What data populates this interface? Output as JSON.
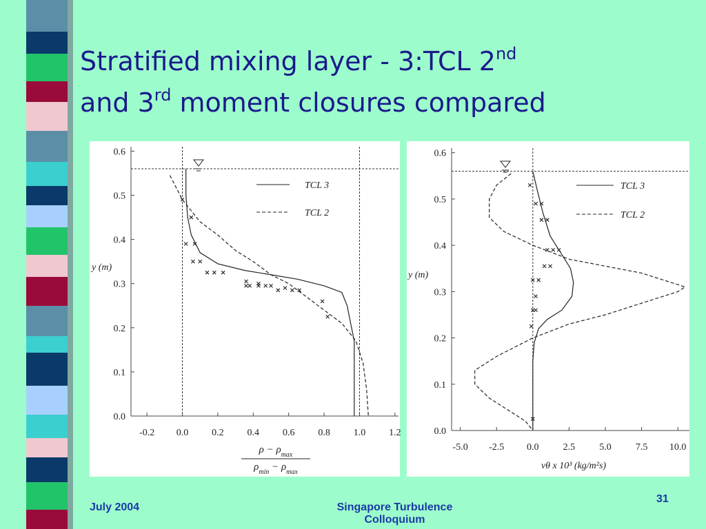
{
  "title": {
    "line1": [
      "Stratified mixing layer - 3:TCL 2",
      "nd"
    ],
    "line2": [
      "and 3",
      "rd",
      " moment closures compared"
    ]
  },
  "footer": {
    "left": "July 2004",
    "center": "Singapore Turbulence Colloquium",
    "page": "31"
  },
  "chart_data": [
    {
      "type": "line",
      "ylabel": "y (m)",
      "xlabel": {
        "numerator": [
          "ρ − ρ",
          "max"
        ],
        "denominator": [
          "ρ",
          "min",
          " − ρ",
          "max"
        ]
      },
      "xlim": [
        -0.29,
        1.22
      ],
      "ylim": [
        0,
        0.61
      ],
      "xticks": [
        {
          "value": -0.2,
          "label": "-0.2"
        },
        {
          "value": 0,
          "label": "0.0"
        },
        {
          "value": 0.2,
          "label": "0.2"
        },
        {
          "value": 0.4,
          "label": "0.4"
        },
        {
          "value": 0.6,
          "label": "0.6"
        },
        {
          "value": 0.8,
          "label": "0.8"
        },
        {
          "value": 1,
          "label": "1.0"
        },
        {
          "value": 1.2,
          "label": "1.2"
        }
      ],
      "yticks": [
        {
          "value": 0,
          "label": "0.0"
        },
        0.1,
        0.2,
        0.3,
        0.4,
        0.5,
        0.6
      ],
      "hlines": [
        0.56
      ],
      "vlines": [
        0,
        1
      ],
      "series": [
        {
          "name": "TCL 3",
          "style": "solid",
          "color": "#222222",
          "x": [
            0.02,
            0.02,
            0.03,
            0.05,
            0.1,
            0.2,
            0.35,
            0.5,
            0.65,
            0.8,
            0.9,
            0.93,
            0.95,
            0.97,
            0.97,
            0.97
          ],
          "values": [
            0.56,
            0.5,
            0.45,
            0.41,
            0.37,
            0.345,
            0.33,
            0.32,
            0.31,
            0.295,
            0.28,
            0.25,
            0.21,
            0.17,
            0.1,
            0
          ]
        },
        {
          "name": "TCL 2",
          "style": "dashed",
          "color": "#222222",
          "x": [
            -0.07,
            0,
            0.1,
            0.2,
            0.3,
            0.4,
            0.5,
            0.6,
            0.7,
            0.8,
            0.9,
            0.98,
            1.02,
            1.04,
            1.05
          ],
          "values": [
            0.545,
            0.49,
            0.44,
            0.41,
            0.375,
            0.35,
            0.32,
            0.3,
            0.27,
            0.24,
            0.21,
            0.17,
            0.12,
            0.06,
            0
          ]
        },
        {
          "style": "markers",
          "color": "#222222",
          "x": [
            0,
            0.05,
            0.02,
            0.07,
            0.06,
            0.1,
            0.14,
            0.18,
            0.23,
            0.36,
            0.36,
            0.38,
            0.43,
            0.43,
            0.47,
            0.5,
            0.54,
            0.58,
            0.62,
            0.66,
            0.79,
            0.82
          ],
          "values": [
            0.49,
            0.45,
            0.39,
            0.39,
            0.35,
            0.35,
            0.325,
            0.325,
            0.325,
            0.305,
            0.295,
            0.295,
            0.3,
            0.295,
            0.295,
            0.295,
            0.285,
            0.29,
            0.285,
            0.285,
            0.26,
            0.225
          ]
        }
      ]
    },
    {
      "type": "line",
      "ylabel": "y (m)",
      "xlabel": "vθ  x 10³ (kg/m²s)",
      "xlim": [
        -5.6,
        10.8
      ],
      "ylim": [
        0,
        0.61
      ],
      "xticks": [
        {
          "value": -5,
          "label": "-5.0"
        },
        {
          "value": -2.5,
          "label": "-2.5"
        },
        {
          "value": 0,
          "label": "0.0"
        },
        2.5,
        {
          "value": 5,
          "label": "5.0"
        },
        7.5,
        {
          "value": 10,
          "label": "10.0"
        }
      ],
      "yticks": [
        {
          "value": 0,
          "label": "0.0"
        },
        0.1,
        0.2,
        0.3,
        0.4,
        0.5,
        0.6
      ],
      "hlines": [
        0.56
      ],
      "vlines": [
        0
      ],
      "series": [
        {
          "name": "TCL 3",
          "style": "solid",
          "color": "#222222",
          "x": [
            0,
            0.3,
            0.7,
            1.2,
            2,
            2.6,
            2.8,
            2.7,
            2,
            1,
            0.4,
            0.1,
            0,
            0
          ],
          "values": [
            0.56,
            0.52,
            0.47,
            0.42,
            0.38,
            0.35,
            0.32,
            0.29,
            0.26,
            0.24,
            0.22,
            0.19,
            0.15,
            0
          ]
        },
        {
          "name": "TCL 2",
          "style": "dashed",
          "color": "#222222",
          "x": [
            -1.5,
            -2.5,
            -3,
            -3,
            -2,
            0,
            2.5,
            5,
            7.5,
            9.5,
            10.5,
            10,
            8,
            5,
            2.5,
            0,
            -2.5,
            -4,
            -4,
            -3,
            -1.5,
            -0.5,
            0
          ],
          "values": [
            0.555,
            0.53,
            0.5,
            0.46,
            0.43,
            0.4,
            0.37,
            0.355,
            0.34,
            0.32,
            0.31,
            0.3,
            0.28,
            0.25,
            0.23,
            0.2,
            0.16,
            0.13,
            0.1,
            0.07,
            0.04,
            0.02,
            0
          ]
        },
        {
          "style": "markers",
          "color": "#222222",
          "x": [
            -0.2,
            0.2,
            0.6,
            0.6,
            1,
            1,
            1.4,
            1.8,
            0.8,
            1.2,
            0,
            0.4,
            0.2,
            0,
            0.2,
            -0.1,
            0
          ],
          "values": [
            0.53,
            0.49,
            0.49,
            0.455,
            0.455,
            0.39,
            0.39,
            0.39,
            0.355,
            0.355,
            0.325,
            0.325,
            0.29,
            0.26,
            0.26,
            0.225,
            0.025
          ]
        }
      ]
    }
  ]
}
